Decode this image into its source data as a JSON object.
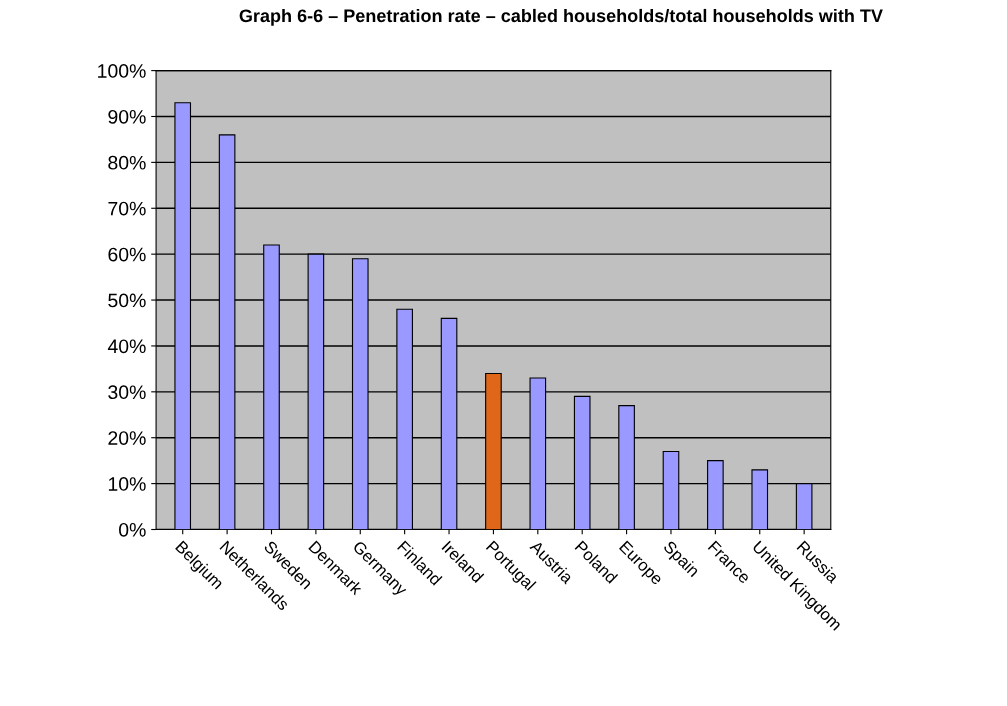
{
  "chart_data": {
    "type": "bar",
    "title": "Graph 6-6 – Penetration rate – cabled households/total households with TV",
    "categories": [
      "Belgium",
      "Netherlands",
      "Sweden",
      "Denmark",
      "Germany",
      "Finland",
      "Ireland",
      "Portugal",
      "Austria",
      "Poland",
      "Europe",
      "Spain",
      "France",
      "United Kingdom",
      "Russia"
    ],
    "values": [
      93,
      86,
      62,
      60,
      59,
      48,
      46,
      34,
      33,
      29,
      27,
      17,
      15,
      13,
      10
    ],
    "colors": [
      "#9999ff",
      "#9999ff",
      "#9999ff",
      "#9999ff",
      "#9999ff",
      "#9999ff",
      "#9999ff",
      "#e0661a",
      "#9999ff",
      "#9999ff",
      "#9999ff",
      "#9999ff",
      "#9999ff",
      "#9999ff",
      "#9999ff"
    ],
    "ylim": [
      0,
      100
    ],
    "yticks": [
      {
        "value": 0,
        "label": "0%"
      },
      {
        "value": 10,
        "label": "10%"
      },
      {
        "value": 20,
        "label": "20%"
      },
      {
        "value": 30,
        "label": "30%"
      },
      {
        "value": 40,
        "label": "40%"
      },
      {
        "value": 50,
        "label": "50%"
      },
      {
        "value": 60,
        "label": "60%"
      },
      {
        "value": 70,
        "label": "70%"
      },
      {
        "value": 80,
        "label": "80%"
      },
      {
        "value": 90,
        "label": "90%"
      },
      {
        "value": 100,
        "label": "100%"
      }
    ],
    "grid": "y"
  }
}
